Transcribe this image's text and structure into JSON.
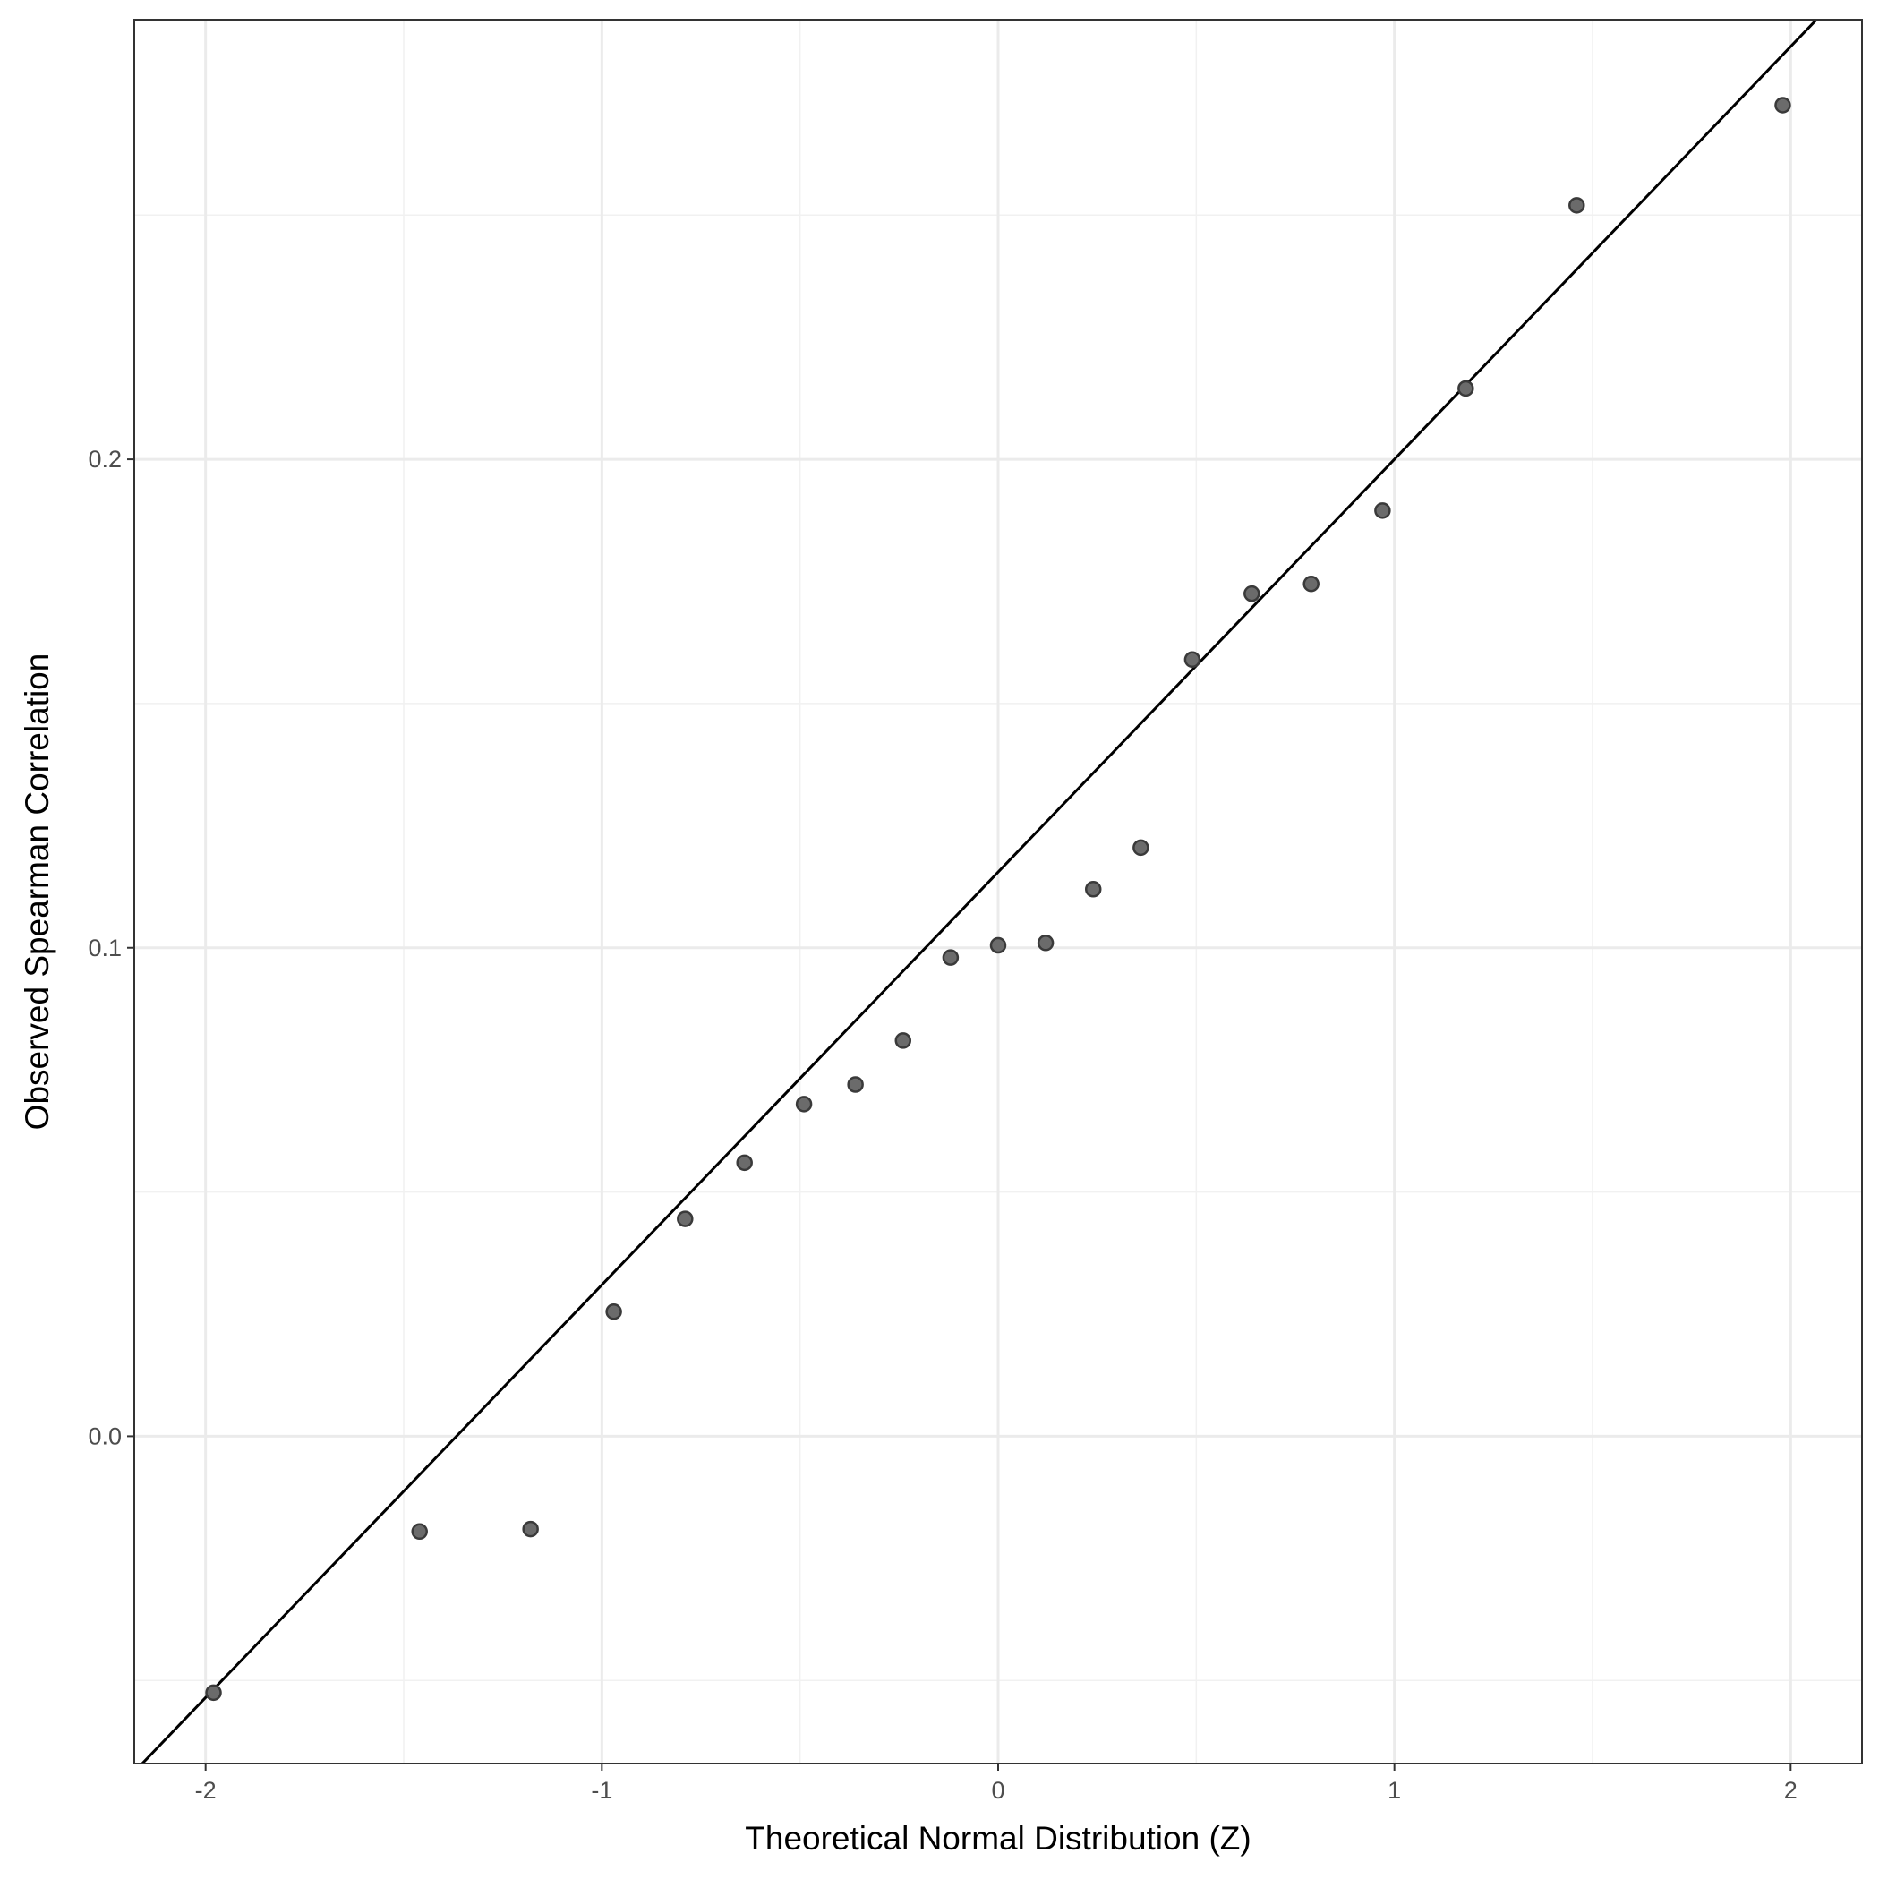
{
  "chart_data": {
    "type": "scatter",
    "title": "",
    "xlabel": "Theoretical Normal Distribution (Z)",
    "ylabel": "Observed Spearman Correlation",
    "xlim": [
      -2.18,
      2.18
    ],
    "ylim": [
      -0.067,
      0.29
    ],
    "x_ticks": [
      -2,
      -1,
      0,
      1,
      2
    ],
    "x_tick_labels": [
      "-2",
      "-1",
      "0",
      "1",
      "2"
    ],
    "y_ticks": [
      0.0,
      0.1,
      0.2
    ],
    "y_tick_labels": [
      "0.0",
      "0.1",
      "0.2"
    ],
    "x_minor_ticks": [
      -1.5,
      -0.5,
      0.5,
      1.5
    ],
    "y_minor_ticks": [
      -0.05,
      0.05,
      0.15,
      0.25
    ],
    "grid": true,
    "theme": "bw",
    "point_color": "#6b6b6b",
    "line_color": "#000000",
    "reference_line": {
      "intercept": 0.1155,
      "slope": 0.0845
    },
    "series": [
      {
        "x": [
          -1.98,
          -1.46,
          -1.18,
          -0.97,
          -0.79,
          -0.64,
          -0.49,
          -0.36,
          -0.24,
          -0.12,
          0.0,
          0.12,
          0.24,
          0.36,
          0.49,
          0.64,
          0.79,
          0.97,
          1.18,
          1.46,
          1.98
        ],
        "y": [
          -0.0525,
          -0.0195,
          -0.019,
          0.0255,
          0.0445,
          0.056,
          0.068,
          0.072,
          0.081,
          0.098,
          0.1005,
          0.101,
          0.112,
          0.1205,
          0.159,
          0.1725,
          0.1745,
          0.1895,
          0.2145,
          0.252,
          0.2725
        ]
      }
    ]
  }
}
